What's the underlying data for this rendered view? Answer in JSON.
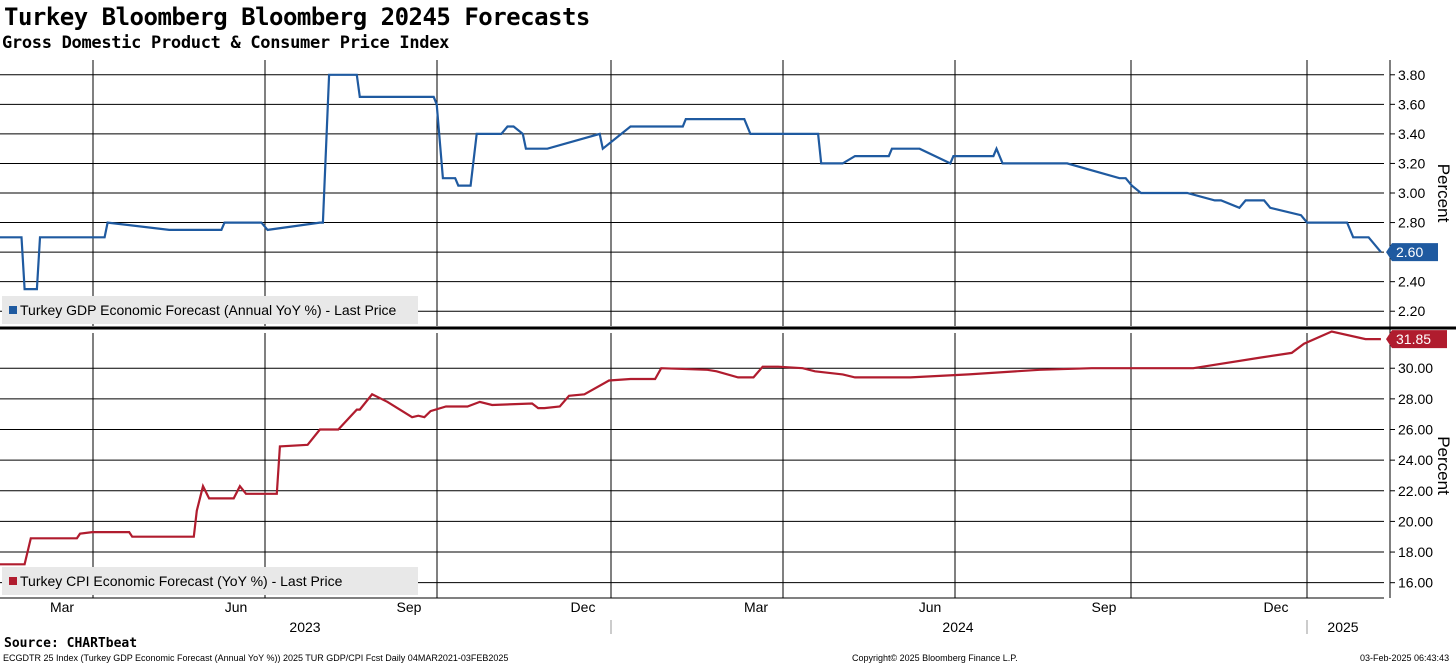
{
  "title": "Turkey Bloomberg Bloomberg 20245 Forecasts",
  "subtitle": "Gross Domestic Product & Consumer Price Index",
  "source": "Source: CHARTbeat",
  "footer": {
    "left": "ECGDTR 25 Index (Turkey GDP Economic Forecast (Annual YoY %)) 2025 TUR GDP/CPI Fcst  Daily 04MAR2021-03FEB2025",
    "center": "Copyright© 2025 Bloomberg Finance L.P.",
    "right": "03-Feb-2025 06:43:43"
  },
  "colors": {
    "gdp": "#1f5aa0",
    "cpi": "#b01c2e",
    "grid": "#000000"
  },
  "chart_data": [
    {
      "type": "line",
      "name": "gdp-panel",
      "ylabel": "Percent",
      "ylim": [
        2.1,
        3.9
      ],
      "yticks": [
        "2.20",
        "2.40",
        "2.60",
        "2.80",
        "3.00",
        "3.20",
        "3.40",
        "3.60",
        "3.80"
      ],
      "last_value_label": "2.60",
      "legend": "Turkey GDP Economic Forecast (Annual YoY %) - Last Price",
      "series": [
        {
          "name": "Turkey GDP Economic Forecast (Annual YoY %)",
          "x": [
            0,
            0.7,
            0.8,
            1.2,
            1.3,
            3.4,
            3.5,
            5.5,
            5.6,
            7.2,
            7.3,
            7.8,
            8.5,
            8.7,
            10.4,
            10.5,
            10.7,
            11.1,
            11.6,
            11.7,
            14.1,
            14.2,
            14.4,
            14.8,
            14.9,
            15.3,
            15.5,
            16.3,
            16.5,
            16.7,
            17.0,
            17.1,
            17.5,
            17.8,
            19.5,
            19.6,
            20.2,
            20.5,
            22.2,
            22.3,
            24.2,
            24.4,
            25.4,
            25.7,
            26.1,
            26.6,
            26.7,
            27.4,
            27.8,
            28.9,
            29.0,
            29.5,
            29.9,
            30.9,
            31.0,
            32.3,
            32.4,
            32.6,
            33.5,
            33.8,
            34.1,
            34.5,
            34.7,
            36.4,
            36.6,
            36.8,
            37.1,
            37.2,
            38.5,
            38.6,
            39.5,
            39.7,
            40.3,
            40.5,
            41.1,
            41.3,
            42.3,
            42.5,
            43.8,
            44.0,
            44.5,
            44.9
          ],
          "values": [
            2.7,
            2.7,
            2.35,
            2.35,
            2.7,
            2.7,
            2.8,
            2.75,
            2.75,
            2.75,
            2.8,
            2.8,
            2.8,
            2.75,
            2.8,
            2.8,
            3.8,
            3.8,
            3.8,
            3.65,
            3.65,
            3.6,
            3.1,
            3.1,
            3.05,
            3.05,
            3.4,
            3.4,
            3.45,
            3.45,
            3.4,
            3.3,
            3.3,
            3.3,
            3.4,
            3.3,
            3.4,
            3.45,
            3.45,
            3.5,
            3.5,
            3.4,
            3.4,
            3.4,
            3.4,
            3.4,
            3.2,
            3.2,
            3.25,
            3.25,
            3.3,
            3.3,
            3.3,
            3.2,
            3.25,
            3.25,
            3.3,
            3.2,
            3.2,
            3.2,
            3.2,
            3.2,
            3.2,
            3.1,
            3.1,
            3.05,
            3.0,
            3.0,
            3.0,
            3.0,
            2.95,
            2.95,
            2.9,
            2.95,
            2.95,
            2.9,
            2.85,
            2.8,
            2.8,
            2.7,
            2.7,
            2.6
          ]
        }
      ]
    },
    {
      "type": "line",
      "name": "cpi-panel",
      "ylabel": "Percent",
      "ylim": [
        15.0,
        32.3
      ],
      "yticks": [
        "16.00",
        "18.00",
        "20.00",
        "22.00",
        "24.00",
        "26.00",
        "28.00",
        "30.00"
      ],
      "last_value_label": "31.85",
      "legend": "Turkey CPI Economic Forecast (YoY %) - Last Price",
      "series": [
        {
          "name": "Turkey CPI Economic Forecast (YoY %)",
          "x": [
            0,
            0.8,
            1.0,
            2.5,
            2.6,
            3.0,
            3.8,
            4.2,
            4.3,
            6.3,
            6.4,
            6.6,
            6.8,
            7.0,
            7.6,
            7.8,
            8.0,
            9.0,
            9.1,
            10.0,
            10.4,
            11.0,
            11.6,
            11.7,
            12.1,
            12.6,
            13.0,
            13.4,
            13.6,
            13.8,
            14.0,
            14.5,
            14.7,
            15.2,
            15.6,
            16.0,
            17.3,
            17.5,
            17.7,
            18.2,
            18.5,
            19.0,
            19.8,
            20.5,
            21.3,
            21.5,
            23.0,
            23.3,
            24.0,
            24.5,
            24.8,
            25.3,
            26.1,
            26.5,
            27.4,
            27.8,
            28.6,
            29.6,
            31.5,
            33.8,
            35.5,
            38.8,
            41.0,
            42.0,
            42.4,
            43.3,
            44.4,
            44.9
          ],
          "values": [
            17.2,
            17.2,
            18.9,
            18.9,
            19.2,
            19.3,
            19.3,
            19.3,
            19.0,
            19.0,
            20.7,
            22.3,
            21.5,
            21.5,
            21.5,
            22.3,
            21.8,
            21.8,
            24.9,
            25.0,
            26.0,
            26.0,
            27.3,
            27.3,
            28.3,
            27.8,
            27.3,
            26.8,
            26.9,
            26.8,
            27.2,
            27.5,
            27.5,
            27.5,
            27.8,
            27.6,
            27.7,
            27.4,
            27.4,
            27.5,
            28.2,
            28.3,
            29.2,
            29.3,
            29.3,
            30.0,
            29.9,
            29.8,
            29.4,
            29.4,
            30.1,
            30.1,
            30.0,
            29.8,
            29.6,
            29.4,
            29.4,
            29.4,
            29.6,
            29.9,
            30.0,
            30.0,
            30.7,
            31.0,
            31.6,
            32.4,
            31.9,
            31.9
          ]
        }
      ]
    }
  ],
  "x_axis": {
    "months": [
      "Mar",
      "Jun",
      "Sep",
      "Dec",
      "Mar",
      "Jun",
      "Sep",
      "Dec"
    ],
    "years": [
      "2023",
      "2024",
      "2025"
    ]
  }
}
